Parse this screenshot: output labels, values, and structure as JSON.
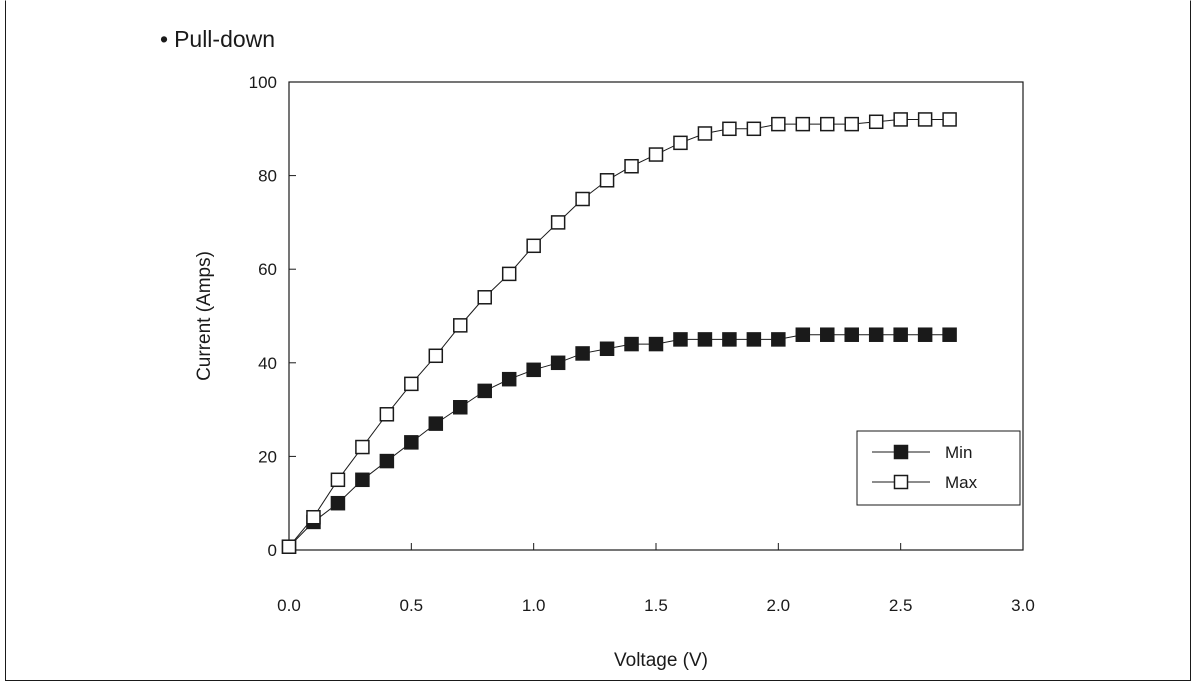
{
  "heading": {
    "bullet": "•",
    "text": "Pull-down"
  },
  "chart_data": {
    "type": "line",
    "title": "",
    "xlabel": "Voltage  (V)",
    "ylabel": "Current  (Amps)",
    "xlim": [
      0,
      3.0
    ],
    "ylim": [
      0,
      100
    ],
    "x_ticks": [
      "0.0",
      "0.5",
      "1.0",
      "1.5",
      "2.0",
      "2.5",
      "3.0"
    ],
    "y_ticks": [
      "0",
      "20",
      "40",
      "60",
      "80",
      "100"
    ],
    "grid": false,
    "legend_position": "bottom-right",
    "x": [
      0.0,
      0.1,
      0.2,
      0.3,
      0.4,
      0.5,
      0.6,
      0.7,
      0.8,
      0.9,
      1.0,
      1.1,
      1.2,
      1.3,
      1.4,
      1.5,
      1.6,
      1.7,
      1.8,
      1.9,
      2.0,
      2.1,
      2.2,
      2.3,
      2.4,
      2.5,
      2.6,
      2.7
    ],
    "series": [
      {
        "name": "Min",
        "marker": "filled-square",
        "color": "#1a1a1a",
        "values": [
          0.7,
          6,
          10,
          15,
          19,
          23,
          27,
          30.5,
          34,
          36.5,
          38.5,
          40,
          42,
          43,
          44,
          44,
          45,
          45,
          45,
          45,
          45,
          46,
          46,
          46,
          46,
          46,
          46,
          46
        ]
      },
      {
        "name": "Max",
        "marker": "open-square",
        "color": "#1a1a1a",
        "values": [
          0.7,
          7,
          15,
          22,
          29,
          35.5,
          41.5,
          48,
          54,
          59,
          65,
          70,
          75,
          79,
          82,
          84.5,
          87,
          89,
          90,
          90,
          91,
          91,
          91,
          91,
          91.5,
          92,
          92,
          92
        ]
      }
    ]
  }
}
